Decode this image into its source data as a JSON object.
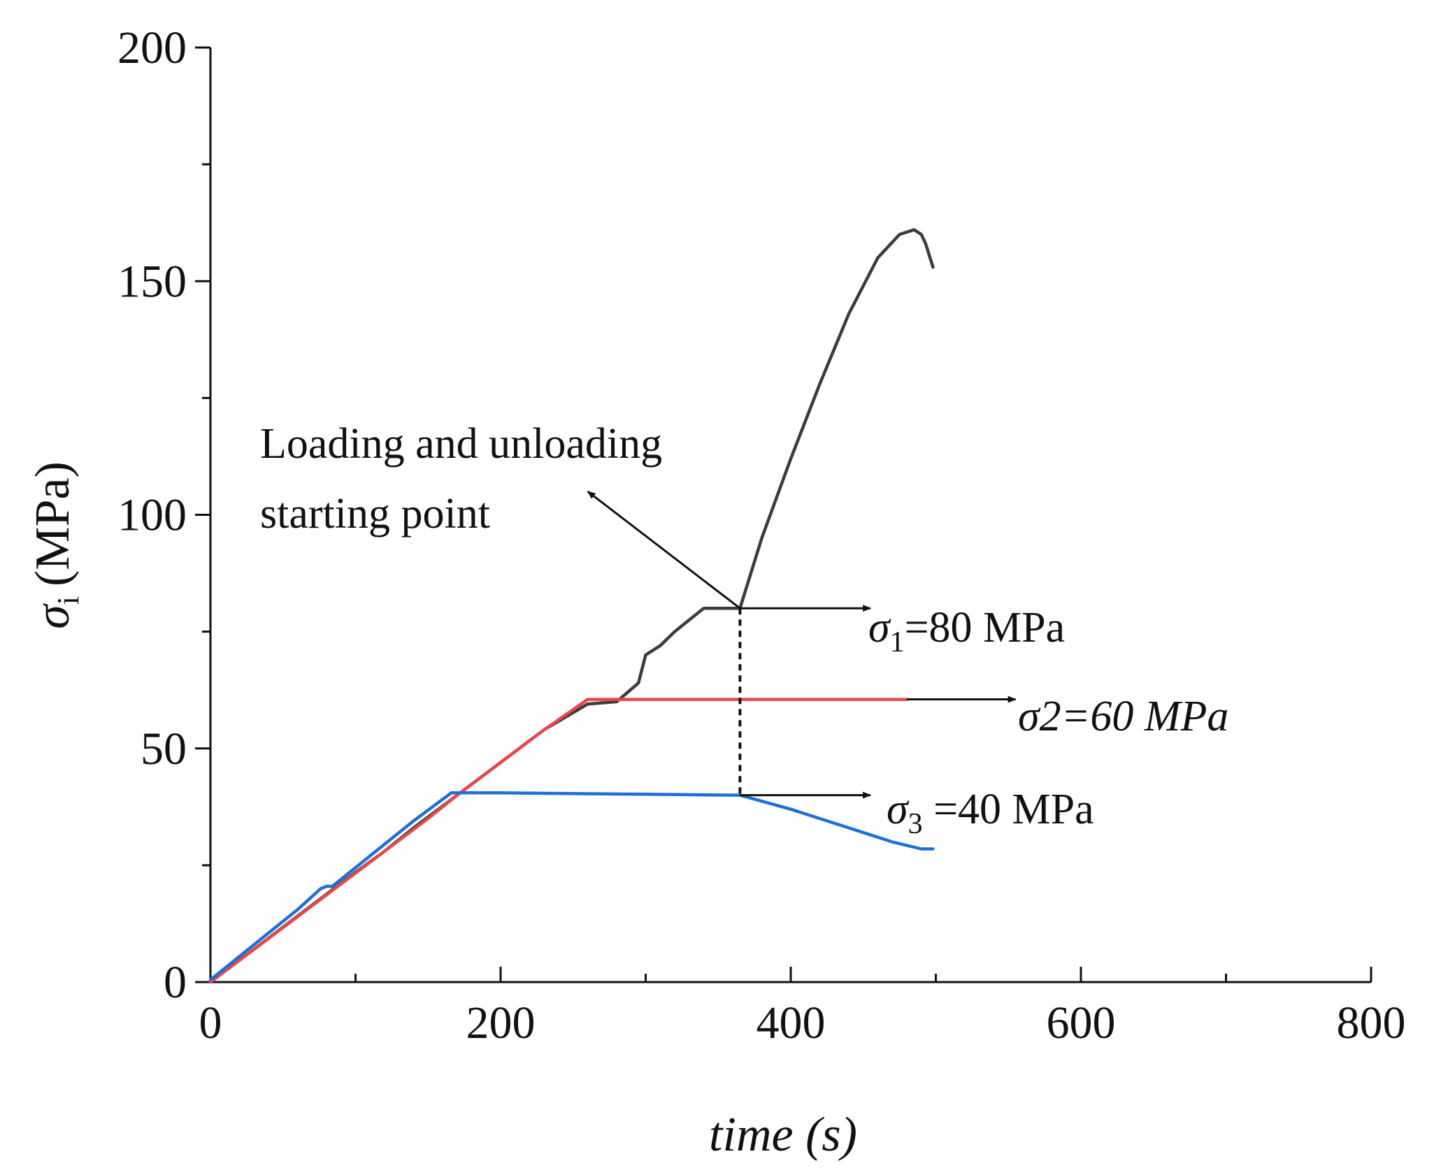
{
  "chart_data": {
    "type": "line",
    "title": "",
    "xlabel": "time (s)",
    "ylabel_symbol": "σ",
    "ylabel_sub": "i",
    "ylabel_unit": "(MPa)",
    "xlim": [
      0,
      800
    ],
    "ylim": [
      0,
      200
    ],
    "x_major_ticks": [
      0,
      200,
      400,
      600,
      800
    ],
    "x_minor_ticks": [
      100,
      300,
      500,
      700
    ],
    "y_major_ticks": [
      0,
      50,
      100,
      150,
      200
    ],
    "y_minor_ticks": [
      25,
      75,
      125,
      175
    ],
    "x_tick_labels": [
      "0",
      "200",
      "400",
      "600",
      "800"
    ],
    "y_tick_labels": [
      "0",
      "50",
      "100",
      "150",
      "200"
    ],
    "grid": false,
    "series": [
      {
        "name": "σ1",
        "color": "#3c3c3c",
        "x": [
          0,
          20,
          40,
          60,
          80,
          85,
          100,
          120,
          140,
          170,
          200,
          230,
          260,
          280,
          295,
          300,
          310,
          320,
          340,
          360,
          365,
          380,
          400,
          420,
          440,
          460,
          475,
          485,
          490,
          493,
          496,
          498
        ],
        "y": [
          0,
          4.7,
          9.4,
          14.1,
          18.8,
          20,
          23.5,
          28,
          33,
          40,
          47,
          54,
          59.5,
          60,
          64,
          70,
          72,
          75,
          80,
          80,
          80,
          95,
          112,
          128,
          143,
          155,
          160,
          161,
          160,
          158,
          155,
          153
        ]
      },
      {
        "name": "σ2",
        "color": "#e8474e",
        "x": [
          0,
          30,
          60,
          90,
          120,
          150,
          170,
          200,
          230,
          260,
          300,
          400,
          480
        ],
        "y": [
          0,
          7,
          14,
          21,
          28,
          35,
          40,
          47,
          54,
          60.5,
          60.5,
          60.5,
          60.5
        ]
      },
      {
        "name": "σ3",
        "color": "#1f6fd6",
        "x": [
          0,
          20,
          40,
          60,
          76,
          80,
          84,
          100,
          120,
          140,
          166,
          200,
          300,
          365,
          400,
          440,
          470,
          490,
          498
        ],
        "y": [
          0.5,
          5.5,
          10.5,
          15.5,
          20,
          20.5,
          20.5,
          24.5,
          29.5,
          34.5,
          40.5,
          40.5,
          40.2,
          40,
          37,
          33,
          30,
          28.5,
          28.5
        ]
      }
    ],
    "annotations": {
      "start_label_line1": "Loading and unloading",
      "start_label_line2": "starting point",
      "start_point": [
        365,
        80
      ],
      "start_label_anchor": [
        260,
        105
      ],
      "dashed_line": {
        "x": 365,
        "y_from": 80,
        "y_to": 40
      },
      "s1_label_sym": "σ",
      "s1_label_sub": "1",
      "s1_label_rest": "=80 MPa",
      "s1_arrow": {
        "x_from": 365,
        "x_to": 455,
        "y": 80
      },
      "s2_label": "σ2=60 MPa",
      "s2_arrow": {
        "x_from": 480,
        "x_to": 555,
        "y": 60.5
      },
      "s3_label_sym": "σ",
      "s3_label_sub": "3",
      "s3_label_rest": " =40 MPa",
      "s3_arrow": {
        "x_from": 365,
        "x_to": 455,
        "y": 40
      }
    }
  }
}
